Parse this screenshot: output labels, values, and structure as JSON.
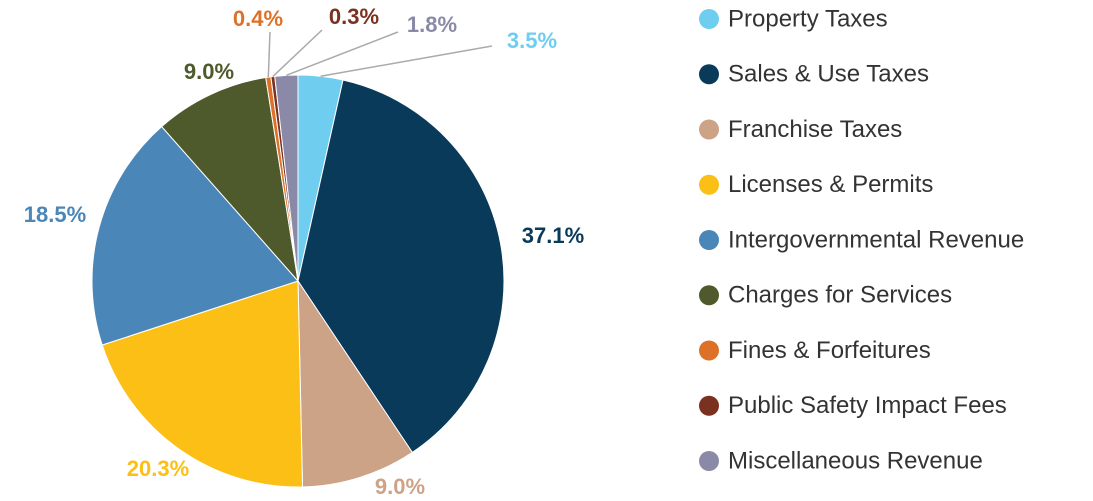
{
  "chart_data": {
    "type": "pie",
    "categories": [
      "Property Taxes",
      "Sales & Use Taxes",
      "Franchise Taxes",
      "Licenses & Permits",
      "Intergovernmental Revenue",
      "Charges for Services",
      "Fines & Forfeitures",
      "Public Safety Impact Fees",
      "Miscellaneous Revenue"
    ],
    "values": [
      3.5,
      37.1,
      9.0,
      20.3,
      18.5,
      9.0,
      0.4,
      0.3,
      1.8
    ],
    "value_labels": [
      "3.5%",
      "37.1%",
      "9.0%",
      "20.3%",
      "18.5%",
      "9.0%",
      "0.4%",
      "0.3%",
      "1.8%"
    ],
    "colors": [
      "#6fcdf0",
      "#0a3a5a",
      "#cca386",
      "#fbbf16",
      "#4a86b8",
      "#4e5a2c",
      "#de7128",
      "#7b3120",
      "#8a8aa8"
    ],
    "legend": "right"
  }
}
